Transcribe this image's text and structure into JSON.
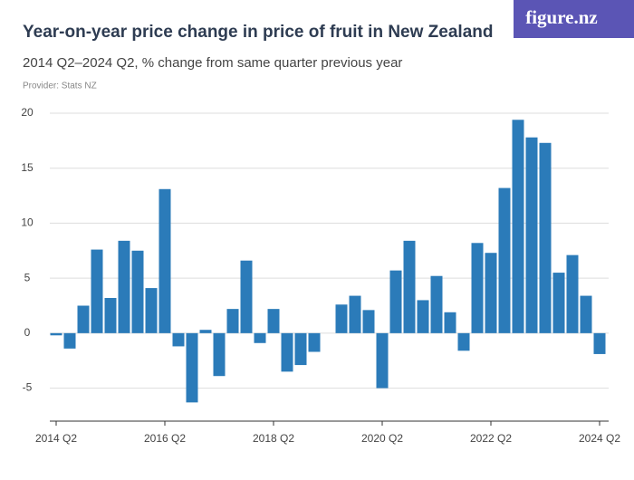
{
  "logo": "figure.nz",
  "chart_data": {
    "type": "bar",
    "title": "Year-on-year price change in price of fruit in New Zealand",
    "subtitle": "2014 Q2–2024 Q2, % change from same quarter previous year",
    "provider": "Provider: Stats NZ",
    "color": "#2b7bb9",
    "grid": true,
    "categories": [
      "2014 Q2",
      null,
      null,
      null,
      null,
      null,
      null,
      null,
      "2016 Q2",
      null,
      null,
      null,
      null,
      null,
      null,
      null,
      "2018 Q2",
      null,
      null,
      null,
      null,
      null,
      null,
      null,
      "2020 Q2",
      null,
      null,
      null,
      null,
      null,
      null,
      null,
      "2022 Q2",
      null,
      null,
      null,
      null,
      null,
      null,
      null,
      "2024 Q2"
    ],
    "values": [
      -0.2,
      -1.4,
      2.5,
      7.6,
      3.2,
      8.4,
      7.5,
      4.1,
      13.1,
      -1.2,
      -6.3,
      0.3,
      -3.9,
      2.2,
      6.6,
      -0.9,
      2.2,
      -3.5,
      -2.9,
      -1.7,
      0,
      2.6,
      3.4,
      2.1,
      -5.0,
      5.7,
      8.4,
      3.0,
      5.2,
      1.9,
      -1.6,
      8.2,
      7.3,
      13.2,
      19.4,
      17.8,
      17.3,
      5.5,
      7.1,
      3.4,
      -1.9
    ],
    "ylim": [
      -8,
      20
    ],
    "yticks": [
      -5,
      0,
      5,
      10,
      15,
      20
    ]
  }
}
